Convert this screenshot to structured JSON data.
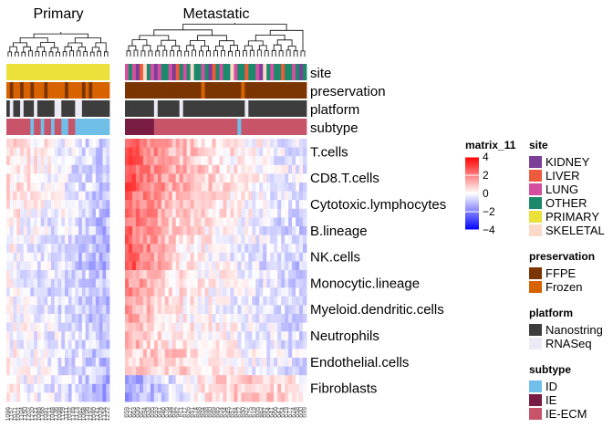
{
  "chart_data": {
    "type": "heatmap",
    "column_groups": [
      {
        "title": "Primary",
        "n_columns": 30
      },
      {
        "title": "Metastatic",
        "n_columns": 50
      }
    ],
    "rows": [
      "T.cells",
      "CD8.T.cells",
      "Cytotoxic.lymphocytes",
      "B.lineage",
      "NK.cells",
      "Monocytic.lineage",
      "Myeloid.dendritic.cells",
      "Neutrophils",
      "Endothelial.cells",
      "Fibroblasts"
    ],
    "annotation_tracks": [
      "site",
      "preservation",
      "platform",
      "subtype"
    ],
    "color_scale": {
      "title": "matrix_11",
      "ticks": [
        4,
        2,
        0,
        -2,
        -4
      ],
      "ticks_text": [
        "4",
        "2",
        "0",
        "−2",
        "−4"
      ],
      "colors": [
        "#ff0000",
        "#ffffff",
        "#0000ff"
      ]
    },
    "legends": [
      {
        "key": "site",
        "title": "site",
        "items": [
          {
            "label": "KIDNEY",
            "color": "#7b3f98"
          },
          {
            "label": "LIVER",
            "color": "#f05a3c"
          },
          {
            "label": "LUNG",
            "color": "#d44fa0"
          },
          {
            "label": "OTHER",
            "color": "#1a8a6b"
          },
          {
            "label": "PRIMARY",
            "color": "#ece03a"
          },
          {
            "label": "SKELETAL",
            "color": "#fbd9c9"
          }
        ]
      },
      {
        "key": "preservation",
        "title": "preservation",
        "items": [
          {
            "label": "FFPE",
            "color": "#7a3503"
          },
          {
            "label": "Frozen",
            "color": "#d96200"
          }
        ]
      },
      {
        "key": "platform",
        "title": "platform",
        "items": [
          {
            "label": "Nanostring",
            "color": "#3d3d3d"
          },
          {
            "label": "RNASeq",
            "color": "#eceaf4"
          }
        ]
      },
      {
        "key": "subtype",
        "title": "subtype",
        "items": [
          {
            "label": "ID",
            "color": "#6fbfe8"
          },
          {
            "label": "IE",
            "color": "#781c43"
          },
          {
            "label": "IE-ECM",
            "color": "#c8546a"
          }
        ]
      }
    ],
    "annotations": {
      "site": {
        "primary": [
          "PRIMARY",
          "PRIMARY",
          "PRIMARY",
          "PRIMARY",
          "PRIMARY",
          "PRIMARY",
          "PRIMARY",
          "PRIMARY",
          "PRIMARY",
          "PRIMARY",
          "PRIMARY",
          "PRIMARY",
          "PRIMARY",
          "PRIMARY",
          "PRIMARY",
          "PRIMARY",
          "PRIMARY",
          "PRIMARY",
          "PRIMARY",
          "PRIMARY",
          "PRIMARY",
          "PRIMARY",
          "PRIMARY",
          "PRIMARY",
          "PRIMARY",
          "PRIMARY",
          "PRIMARY",
          "PRIMARY",
          "PRIMARY",
          "PRIMARY"
        ],
        "metastatic": [
          "LUNG",
          "OTHER",
          "LUNG",
          "KIDNEY",
          "LIVER",
          "SKELETAL",
          "OTHER",
          "LUNG",
          "KIDNEY",
          "LUNG",
          "OTHER",
          "OTHER",
          "LUNG",
          "KIDNEY",
          "LIVER",
          "OTHER",
          "LUNG",
          "OTHER",
          "SKELETAL",
          "OTHER",
          "OTHER",
          "LUNG",
          "OTHER",
          "KIDNEY",
          "LIVER",
          "OTHER",
          "LUNG",
          "OTHER",
          "OTHER",
          "SKELETAL",
          "LUNG",
          "OTHER",
          "OTHER",
          "LIVER",
          "OTHER",
          "OTHER",
          "LUNG",
          "KIDNEY",
          "SKELETAL",
          "OTHER",
          "LUNG",
          "OTHER",
          "OTHER",
          "LIVER",
          "OTHER",
          "OTHER",
          "LUNG",
          "OTHER",
          "KIDNEY",
          "OTHER"
        ]
      },
      "preservation": {
        "primary": [
          "Frozen",
          "FFPE",
          "Frozen",
          "Frozen",
          "FFPE",
          "Frozen",
          "Frozen",
          "FFPE",
          "Frozen",
          "Frozen",
          "Frozen",
          "FFPE",
          "Frozen",
          "Frozen",
          "Frozen",
          "Frozen",
          "Frozen",
          "FFPE",
          "Frozen",
          "Frozen",
          "Frozen",
          "Frozen",
          "FFPE",
          "Frozen",
          "FFPE",
          "Frozen",
          "Frozen",
          "Frozen",
          "Frozen",
          "Frozen"
        ],
        "metastatic": [
          "FFPE",
          "FFPE",
          "FFPE",
          "FFPE",
          "FFPE",
          "FFPE",
          "FFPE",
          "FFPE",
          "FFPE",
          "FFPE",
          "FFPE",
          "FFPE",
          "FFPE",
          "FFPE",
          "FFPE",
          "FFPE",
          "FFPE",
          "FFPE",
          "FFPE",
          "FFPE",
          "FFPE",
          "Frozen",
          "FFPE",
          "FFPE",
          "FFPE",
          "FFPE",
          "FFPE",
          "FFPE",
          "FFPE",
          "FFPE",
          "FFPE",
          "FFPE",
          "Frozen",
          "FFPE",
          "FFPE",
          "FFPE",
          "FFPE",
          "FFPE",
          "FFPE",
          "FFPE",
          "FFPE",
          "FFPE",
          "FFPE",
          "FFPE",
          "FFPE",
          "FFPE",
          "FFPE",
          "FFPE",
          "FFPE",
          "FFPE"
        ]
      },
      "platform": {
        "primary": [
          "Nanostring",
          "RNASeq",
          "Nanostring",
          "Nanostring",
          "RNASeq",
          "Nanostring",
          "Nanostring",
          "Nanostring",
          "RNASeq",
          "Nanostring",
          "Nanostring",
          "Nanostring",
          "Nanostring",
          "Nanostring",
          "RNASeq",
          "RNASeq",
          "Nanostring",
          "Nanostring",
          "Nanostring",
          "Nanostring",
          "RNASeq",
          "RNASeq",
          "Nanostring",
          "Nanostring",
          "Nanostring",
          "Nanostring",
          "Nanostring",
          "Nanostring",
          "Nanostring",
          "Nanostring"
        ],
        "metastatic": [
          "Nanostring",
          "Nanostring",
          "Nanostring",
          "Nanostring",
          "Nanostring",
          "Nanostring",
          "Nanostring",
          "Nanostring",
          "RNASeq",
          "Nanostring",
          "Nanostring",
          "Nanostring",
          "Nanostring",
          "Nanostring",
          "Nanostring",
          "RNASeq",
          "Nanostring",
          "Nanostring",
          "Nanostring",
          "Nanostring",
          "Nanostring",
          "Nanostring",
          "Nanostring",
          "Nanostring",
          "Nanostring",
          "Nanostring",
          "Nanostring",
          "Nanostring",
          "Nanostring",
          "Nanostring",
          "Nanostring",
          "Nanostring",
          "Nanostring",
          "RNASeq",
          "Nanostring",
          "Nanostring",
          "Nanostring",
          "Nanostring",
          "Nanostring",
          "Nanostring",
          "Nanostring",
          "Nanostring",
          "Nanostring",
          "Nanostring",
          "Nanostring",
          "Nanostring",
          "Nanostring",
          "Nanostring",
          "Nanostring",
          "Nanostring"
        ]
      },
      "subtype": {
        "primary": [
          "IE-ECM",
          "IE-ECM",
          "IE-ECM",
          "IE-ECM",
          "IE-ECM",
          "IE-ECM",
          "IE-ECM",
          "ID",
          "IE-ECM",
          "IE-ECM",
          "ID",
          "IE-ECM",
          "IE-ECM",
          "ID",
          "IE-ECM",
          "IE-ECM",
          "ID",
          "ID",
          "IE-ECM",
          "IE-ECM",
          "ID",
          "ID",
          "ID",
          "ID",
          "ID",
          "ID",
          "ID",
          "ID",
          "ID",
          "ID"
        ],
        "metastatic": [
          "IE",
          "IE",
          "IE",
          "IE",
          "IE",
          "IE",
          "IE",
          "IE",
          "IE-ECM",
          "IE-ECM",
          "IE-ECM",
          "IE-ECM",
          "IE-ECM",
          "IE-ECM",
          "IE-ECM",
          "IE-ECM",
          "IE-ECM",
          "IE-ECM",
          "IE-ECM",
          "IE-ECM",
          "IE-ECM",
          "IE-ECM",
          "IE-ECM",
          "IE-ECM",
          "IE-ECM",
          "IE-ECM",
          "IE-ECM",
          "IE-ECM",
          "IE-ECM",
          "IE-ECM",
          "IE-ECM",
          "ID",
          "IE-ECM",
          "IE-ECM",
          "IE-ECM",
          "IE-ECM",
          "IE-ECM",
          "IE-ECM",
          "IE-ECM",
          "IE-ECM",
          "IE-ECM",
          "IE-ECM",
          "IE-ECM",
          "IE-ECM",
          "IE-ECM",
          "IE-ECM",
          "IE-ECM",
          "IE-ECM",
          "IE-ECM",
          "IE-ECM"
        ]
      }
    },
    "row_profiles": {
      "primary": [
        [
          0.6,
          0.3,
          -0.4,
          -0.8
        ],
        [
          0.5,
          0.2,
          -0.5,
          -0.9
        ],
        [
          0.4,
          0.1,
          -0.3,
          -1.0
        ],
        [
          0.2,
          -0.2,
          -0.5,
          -1.1
        ],
        [
          0.1,
          -0.3,
          -0.8,
          -1.2
        ],
        [
          0.0,
          -0.5,
          -0.6,
          -0.8
        ],
        [
          0.1,
          -0.4,
          -0.7,
          -1.0
        ],
        [
          0.0,
          -0.2,
          -0.5,
          -0.9
        ],
        [
          0.2,
          -0.1,
          -0.5,
          -1.0
        ],
        [
          0.2,
          -0.2,
          -0.6,
          -1.3
        ]
      ],
      "metastatic": [
        [
          2.8,
          1.2,
          0.5,
          0.0,
          -0.5
        ],
        [
          2.7,
          1.3,
          0.6,
          0.0,
          -0.4
        ],
        [
          2.5,
          1.0,
          0.4,
          -0.1,
          -0.6
        ],
        [
          2.4,
          0.8,
          0.2,
          -0.3,
          -0.7
        ],
        [
          2.9,
          0.6,
          0.0,
          -0.4,
          -0.8
        ],
        [
          1.8,
          0.5,
          0.1,
          -0.3,
          -0.6
        ],
        [
          1.5,
          0.4,
          0.0,
          -0.4,
          -0.7
        ],
        [
          1.2,
          0.3,
          0.2,
          -0.2,
          -0.6
        ],
        [
          0.6,
          0.8,
          0.3,
          -0.2,
          -0.5
        ],
        [
          -1.5,
          -0.5,
          0.6,
          0.9,
          0.4
        ]
      ]
    },
    "column_labels_primary": [
      "1096",
      "1157",
      "1071",
      "1001",
      "1104",
      "1150",
      "1202",
      "1210",
      "1121",
      "1085",
      "1166",
      "1091",
      "1211",
      "1048",
      "1136",
      "1098",
      "1159",
      "1111",
      "1032",
      "1149",
      "1173",
      "1082",
      "1068",
      "1106",
      "1192",
      "1040",
      "1141",
      "1028",
      "1154",
      "1222"
    ],
    "column_labels_metastatic": [
      "659",
      "627",
      "663",
      "606",
      "667",
      "694",
      "603",
      "695",
      "693",
      "681",
      "646",
      "676",
      "638",
      "692",
      "682",
      "611",
      "617",
      "626",
      "651",
      "674",
      "688",
      "604",
      "698",
      "690",
      "669",
      "685",
      "624",
      "634",
      "645",
      "657",
      "684",
      "612",
      "650",
      "607",
      "675",
      "619",
      "605",
      "662",
      "697",
      "664",
      "641",
      "666",
      "647",
      "654",
      "619",
      "677",
      "624",
      "658",
      "600",
      "699"
    ]
  }
}
